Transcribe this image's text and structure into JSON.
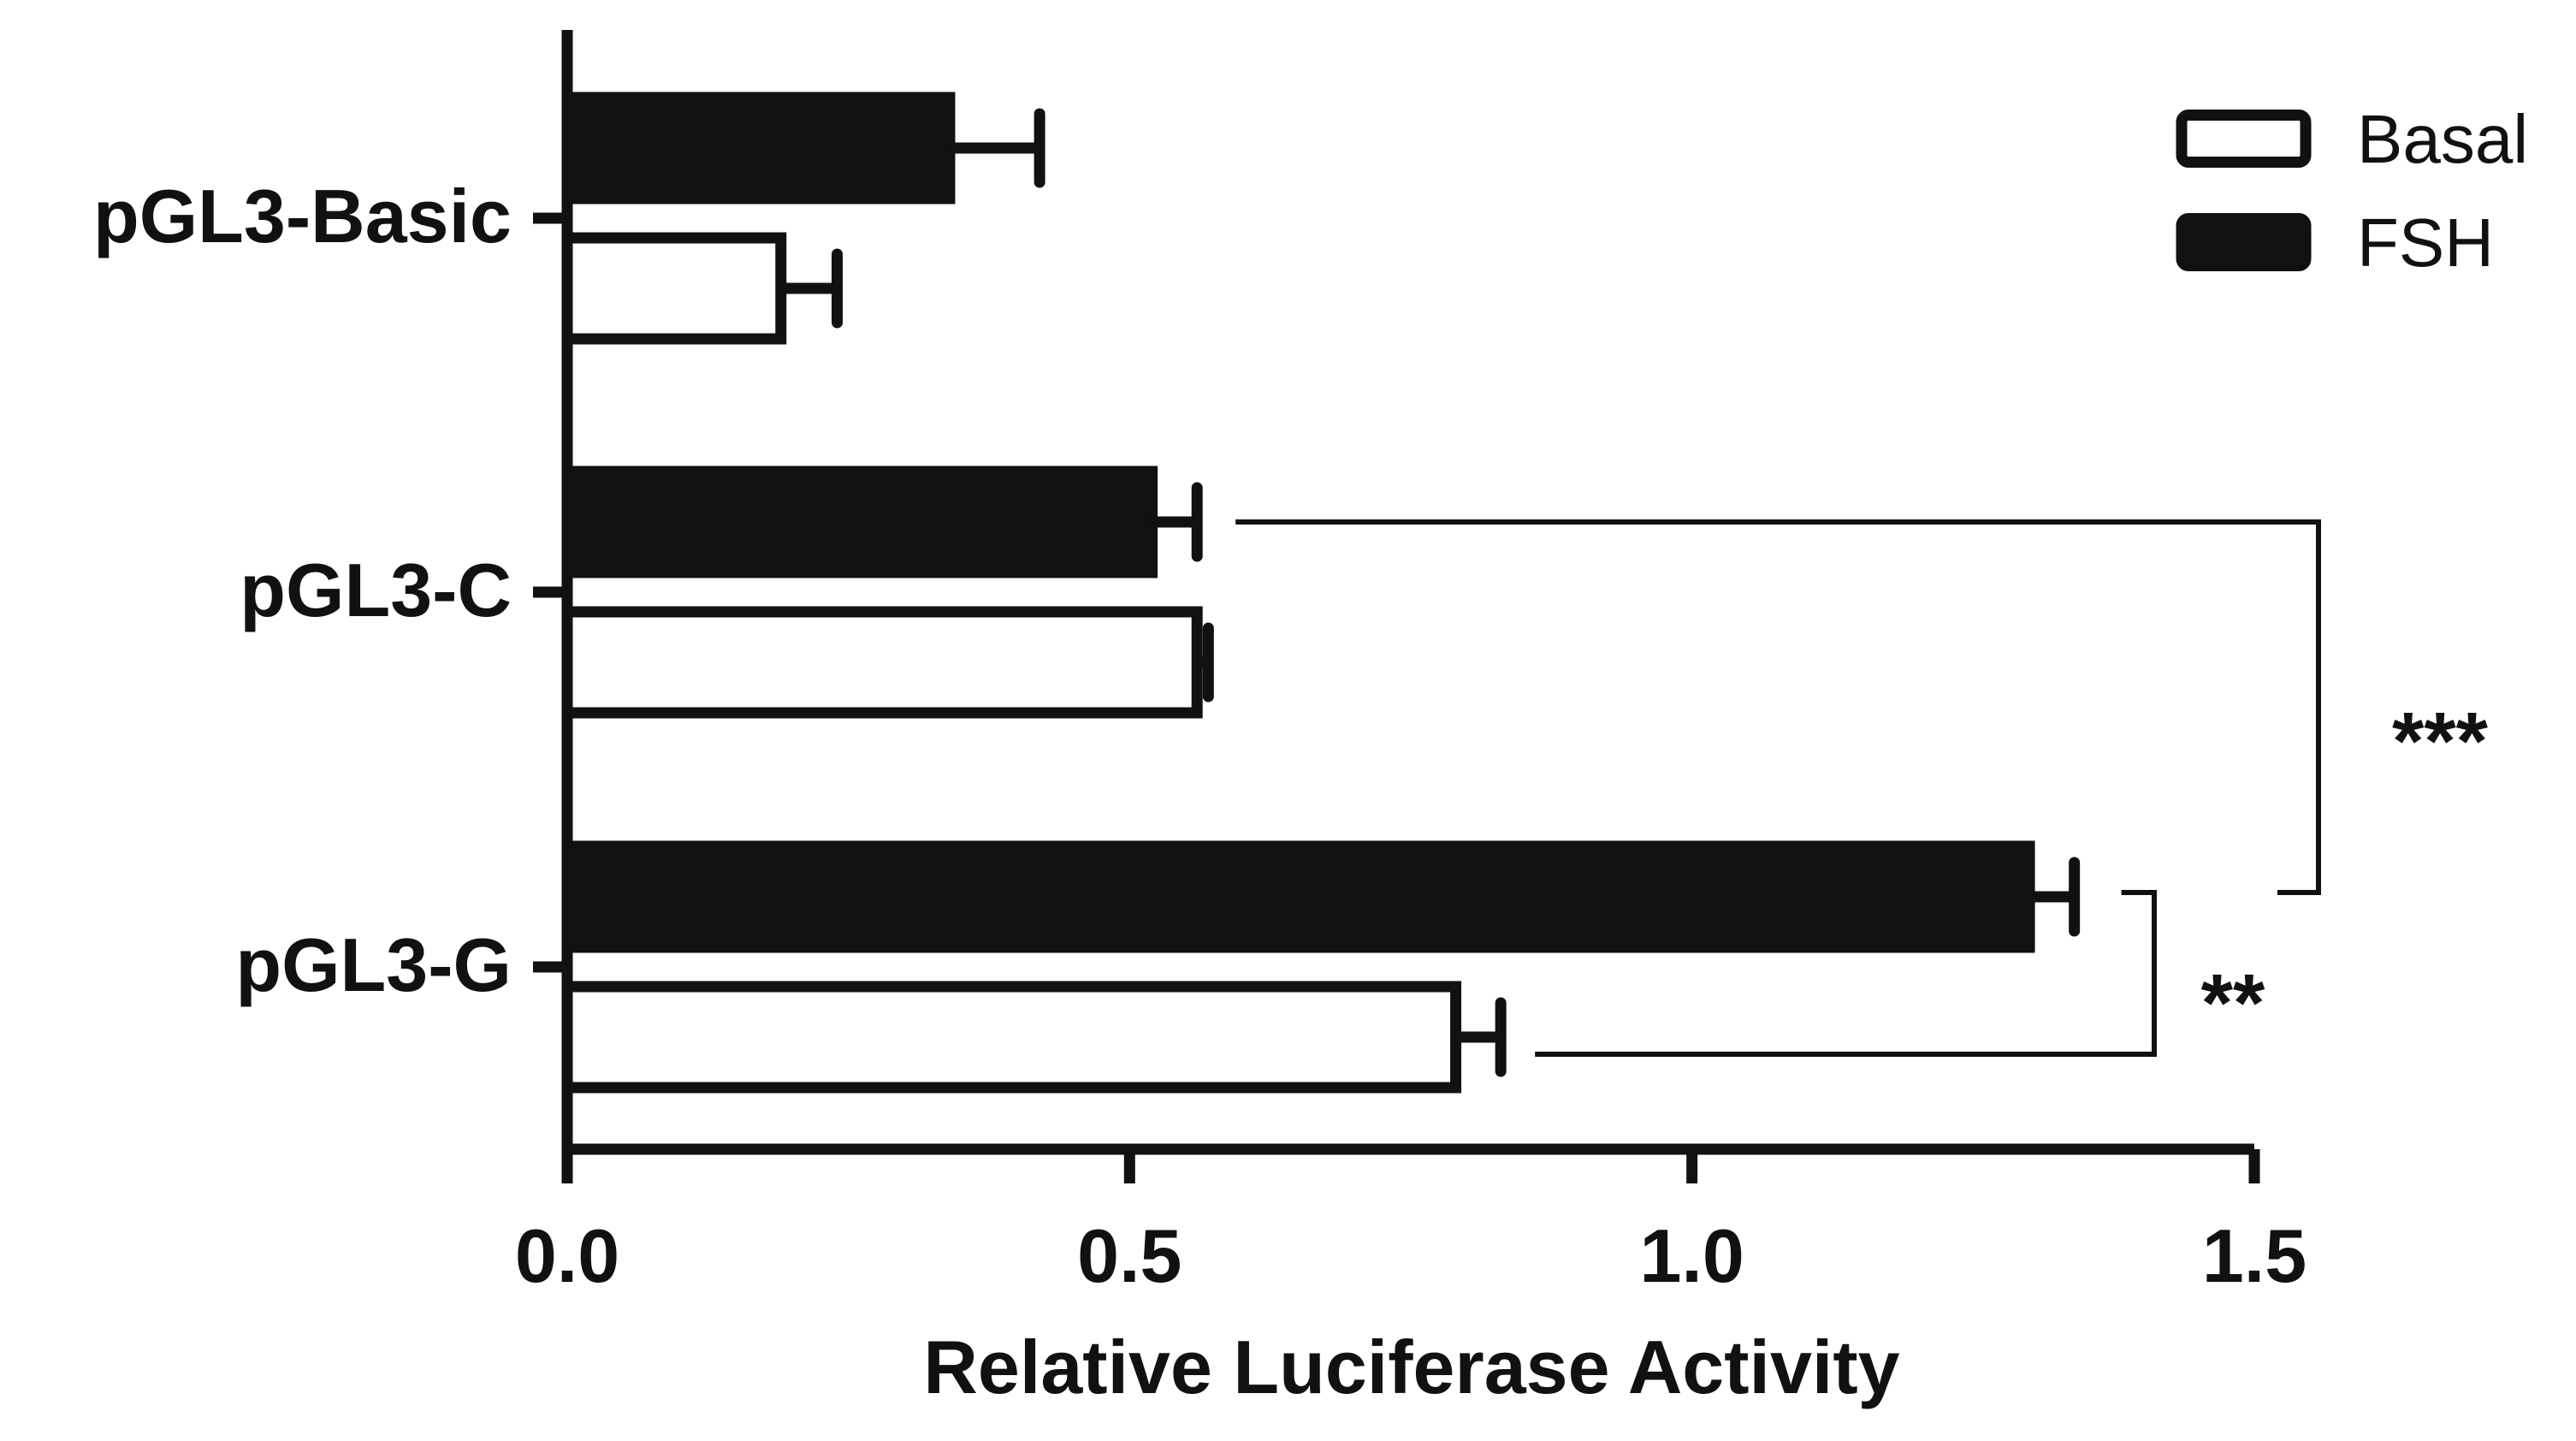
{
  "chart_data": {
    "type": "bar",
    "orientation": "horizontal",
    "title": "",
    "xlabel": "Relative Luciferase Activity",
    "ylabel": "",
    "xlim": [
      0,
      1.5
    ],
    "x_ticks": [
      0.0,
      0.5,
      1.0,
      1.5
    ],
    "x_tick_labels": [
      "0.0",
      "0.5",
      "1.0",
      "1.5"
    ],
    "categories": [
      "pGL3-Basic",
      "pGL3-C",
      "pGL3-G"
    ],
    "series": [
      {
        "name": "Basal",
        "fill": "#ffffff",
        "values": [
          0.19,
          0.56,
          0.79
        ],
        "errors": [
          0.05,
          0.01,
          0.04
        ]
      },
      {
        "name": "FSH",
        "fill": "#111111",
        "values": [
          0.34,
          0.52,
          1.3
        ],
        "errors": [
          0.08,
          0.04,
          0.04
        ]
      }
    ],
    "legend": {
      "position": "top-right",
      "entries": [
        "Basal",
        "FSH"
      ]
    },
    "grid": false,
    "annotations": [
      {
        "label": "***",
        "between": [
          "pGL3-C FSH",
          "pGL3-G FSH"
        ]
      },
      {
        "label": "**",
        "between": [
          "pGL3-G FSH",
          "pGL3-G Basal"
        ]
      }
    ]
  }
}
